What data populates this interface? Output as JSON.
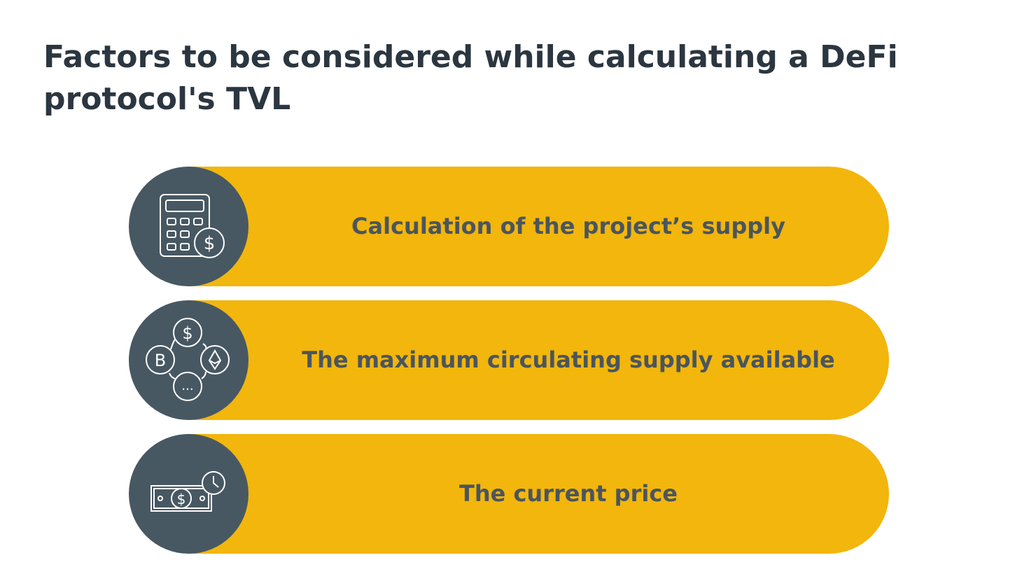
{
  "header": {
    "title": "Factors to be considered while calculating a DeFi protocol's TVL"
  },
  "items": [
    {
      "label": "Calculation of the project’s supply"
    },
    {
      "label": "The maximum circulating supply available"
    },
    {
      "label": "The current price"
    }
  ]
}
